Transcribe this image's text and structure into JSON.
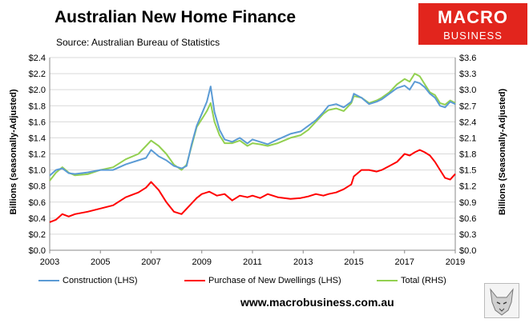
{
  "header": {
    "title": "Australian New Home Finance",
    "subtitle": "Source: Australian Bureau of Statistics",
    "logo_line1": "MACRO",
    "logo_line2": "BUSINESS"
  },
  "footer": {
    "website": "www.macrobusiness.com.au"
  },
  "colors": {
    "construction": "#5b9bd5",
    "purchase": "#ff0000",
    "total": "#92d050"
  },
  "chart_data": {
    "type": "line",
    "ylabel": "Billions (seasonally-Adjusted)",
    "y2label": "Billions (Seasonally-Adjusted)",
    "xlim": [
      2003,
      2019
    ],
    "ylim": [
      0,
      2.4
    ],
    "y2lim": [
      0,
      3.6
    ],
    "xticks": [
      "2003",
      "2005",
      "2007",
      "2009",
      "2011",
      "2013",
      "2015",
      "2017",
      "2019"
    ],
    "yticks": [
      "$0.0",
      "$0.2",
      "$0.4",
      "$0.6",
      "$0.8",
      "$1.0",
      "$1.2",
      "$1.4",
      "$1.6",
      "$1.8",
      "$2.0",
      "$2.2",
      "$2.4"
    ],
    "y2ticks": [
      "$0.0",
      "$0.3",
      "$0.6",
      "$0.9",
      "$1.2",
      "$1.5",
      "$1.8",
      "$2.1",
      "$2.4",
      "$2.7",
      "$3.0",
      "$3.3",
      "$3.6"
    ],
    "legend_position": "bottom",
    "series": [
      {
        "name": "Construction (LHS)",
        "axis": "left",
        "x": [
          2003.0,
          2003.25,
          2003.5,
          2003.75,
          2004.0,
          2004.5,
          2005.0,
          2005.5,
          2006.0,
          2006.5,
          2006.8,
          2007.0,
          2007.3,
          2007.6,
          2007.9,
          2008.2,
          2008.4,
          2008.6,
          2008.8,
          2009.0,
          2009.2,
          2009.35,
          2009.5,
          2009.7,
          2009.9,
          2010.2,
          2010.5,
          2010.8,
          2011.0,
          2011.3,
          2011.6,
          2012.0,
          2012.5,
          2012.9,
          2013.2,
          2013.5,
          2013.8,
          2014.0,
          2014.3,
          2014.6,
          2014.9,
          2015.0,
          2015.3,
          2015.6,
          2015.9,
          2016.1,
          2016.4,
          2016.7,
          2017.0,
          2017.2,
          2017.4,
          2017.6,
          2017.8,
          2018.0,
          2018.2,
          2018.4,
          2018.6,
          2018.8,
          2019.0
        ],
        "y": [
          0.93,
          1.0,
          1.02,
          0.96,
          0.95,
          0.97,
          1.0,
          1.0,
          1.07,
          1.12,
          1.15,
          1.25,
          1.17,
          1.12,
          1.05,
          1.02,
          1.05,
          1.32,
          1.55,
          1.7,
          1.85,
          2.04,
          1.72,
          1.5,
          1.38,
          1.35,
          1.4,
          1.33,
          1.38,
          1.35,
          1.32,
          1.38,
          1.45,
          1.48,
          1.55,
          1.62,
          1.72,
          1.8,
          1.82,
          1.78,
          1.85,
          1.95,
          1.9,
          1.82,
          1.85,
          1.88,
          1.95,
          2.02,
          2.05,
          2.0,
          2.1,
          2.08,
          2.03,
          1.95,
          1.9,
          1.8,
          1.78,
          1.85,
          1.82
        ]
      },
      {
        "name": "Purchase of New Dwellings (LHS)",
        "axis": "left",
        "x": [
          2003.0,
          2003.25,
          2003.5,
          2003.75,
          2004.0,
          2004.5,
          2005.0,
          2005.5,
          2006.0,
          2006.5,
          2006.8,
          2007.0,
          2007.3,
          2007.6,
          2007.9,
          2008.2,
          2008.5,
          2008.8,
          2009.0,
          2009.3,
          2009.6,
          2009.9,
          2010.2,
          2010.5,
          2010.8,
          2011.0,
          2011.3,
          2011.6,
          2012.0,
          2012.5,
          2012.9,
          2013.2,
          2013.5,
          2013.8,
          2014.0,
          2014.3,
          2014.6,
          2014.9,
          2015.0,
          2015.3,
          2015.6,
          2015.9,
          2016.1,
          2016.4,
          2016.7,
          2017.0,
          2017.2,
          2017.4,
          2017.6,
          2017.8,
          2018.0,
          2018.2,
          2018.4,
          2018.6,
          2018.8,
          2019.0
        ],
        "y": [
          0.35,
          0.38,
          0.45,
          0.42,
          0.45,
          0.48,
          0.52,
          0.56,
          0.66,
          0.72,
          0.78,
          0.85,
          0.75,
          0.6,
          0.48,
          0.45,
          0.55,
          0.65,
          0.7,
          0.73,
          0.68,
          0.7,
          0.62,
          0.68,
          0.66,
          0.68,
          0.65,
          0.7,
          0.66,
          0.64,
          0.65,
          0.67,
          0.7,
          0.68,
          0.7,
          0.72,
          0.76,
          0.82,
          0.92,
          1.0,
          1.0,
          0.98,
          1.0,
          1.05,
          1.1,
          1.2,
          1.18,
          1.22,
          1.25,
          1.22,
          1.18,
          1.1,
          1.0,
          0.9,
          0.88,
          0.95
        ]
      },
      {
        "name": "Total (RHS)",
        "axis": "right",
        "x": [
          2003.0,
          2003.25,
          2003.5,
          2003.75,
          2004.0,
          2004.5,
          2005.0,
          2005.5,
          2006.0,
          2006.5,
          2006.8,
          2007.0,
          2007.3,
          2007.6,
          2007.9,
          2008.2,
          2008.4,
          2008.6,
          2008.8,
          2009.0,
          2009.2,
          2009.35,
          2009.5,
          2009.7,
          2009.9,
          2010.2,
          2010.5,
          2010.8,
          2011.0,
          2011.3,
          2011.6,
          2012.0,
          2012.5,
          2012.9,
          2013.2,
          2013.5,
          2013.8,
          2014.0,
          2014.3,
          2014.6,
          2014.9,
          2015.0,
          2015.3,
          2015.6,
          2015.9,
          2016.1,
          2016.4,
          2016.7,
          2017.0,
          2017.2,
          2017.4,
          2017.6,
          2017.8,
          2018.0,
          2018.2,
          2018.4,
          2018.6,
          2018.8,
          2019.0
        ],
        "y": [
          1.3,
          1.45,
          1.55,
          1.45,
          1.4,
          1.42,
          1.5,
          1.55,
          1.7,
          1.8,
          1.95,
          2.05,
          1.95,
          1.8,
          1.6,
          1.5,
          1.6,
          1.95,
          2.3,
          2.45,
          2.6,
          2.75,
          2.4,
          2.15,
          2.0,
          2.0,
          2.05,
          1.95,
          2.0,
          1.98,
          1.95,
          2.0,
          2.1,
          2.15,
          2.25,
          2.4,
          2.55,
          2.62,
          2.65,
          2.6,
          2.75,
          2.88,
          2.85,
          2.75,
          2.8,
          2.85,
          2.95,
          3.1,
          3.2,
          3.15,
          3.3,
          3.25,
          3.1,
          2.95,
          2.9,
          2.75,
          2.72,
          2.8,
          2.75
        ]
      }
    ]
  }
}
